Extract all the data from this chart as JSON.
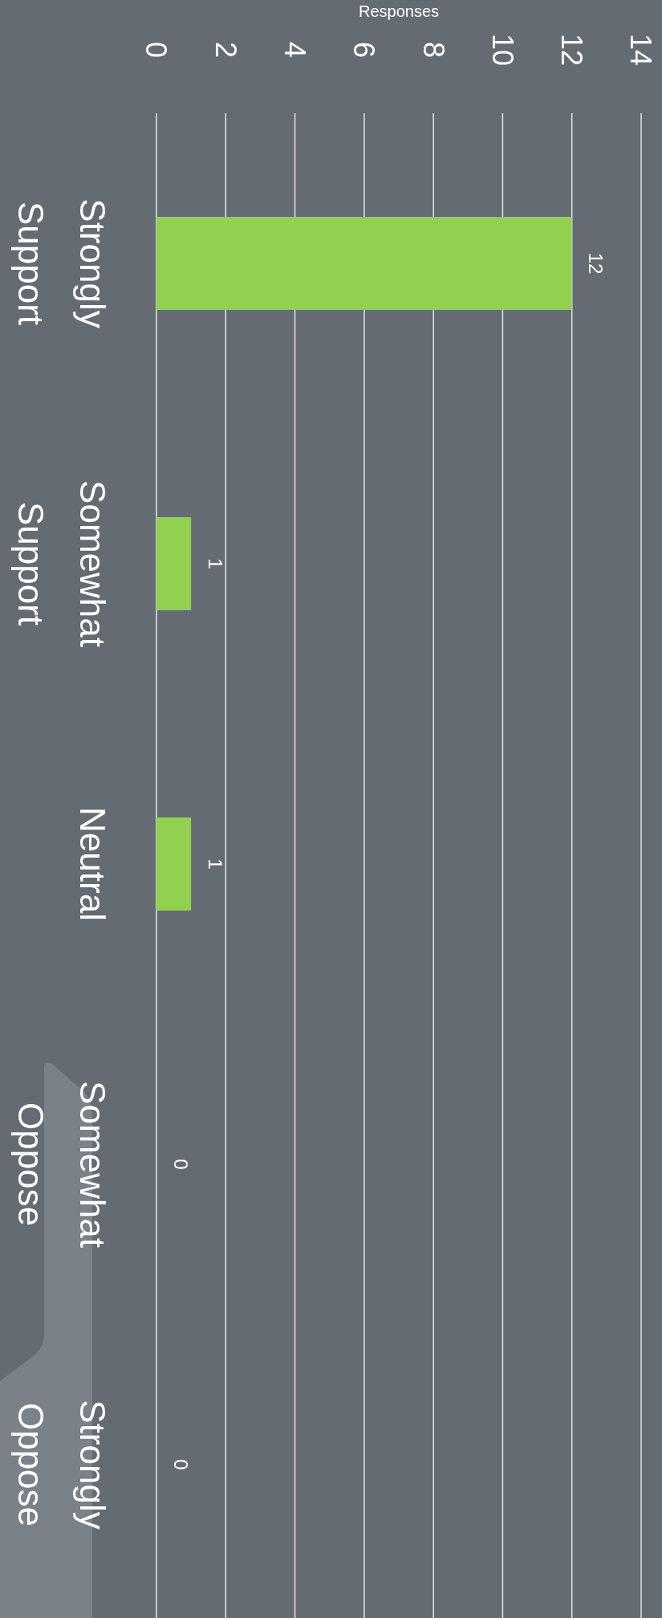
{
  "chart_data": {
    "type": "bar",
    "orientation": "horizontal",
    "xlabel": "Responses",
    "categories": [
      "Strongly Support",
      "Somewhat Support",
      "Neutral",
      "Somewhat Oppose",
      "Strongly Oppose"
    ],
    "values": [
      12,
      1,
      1,
      0,
      0
    ],
    "color": "#92d050",
    "data_labels": true,
    "xlim": [
      0,
      14
    ],
    "xticks": [
      0,
      2,
      4,
      6,
      8,
      10,
      12,
      14
    ],
    "grid": "x"
  }
}
